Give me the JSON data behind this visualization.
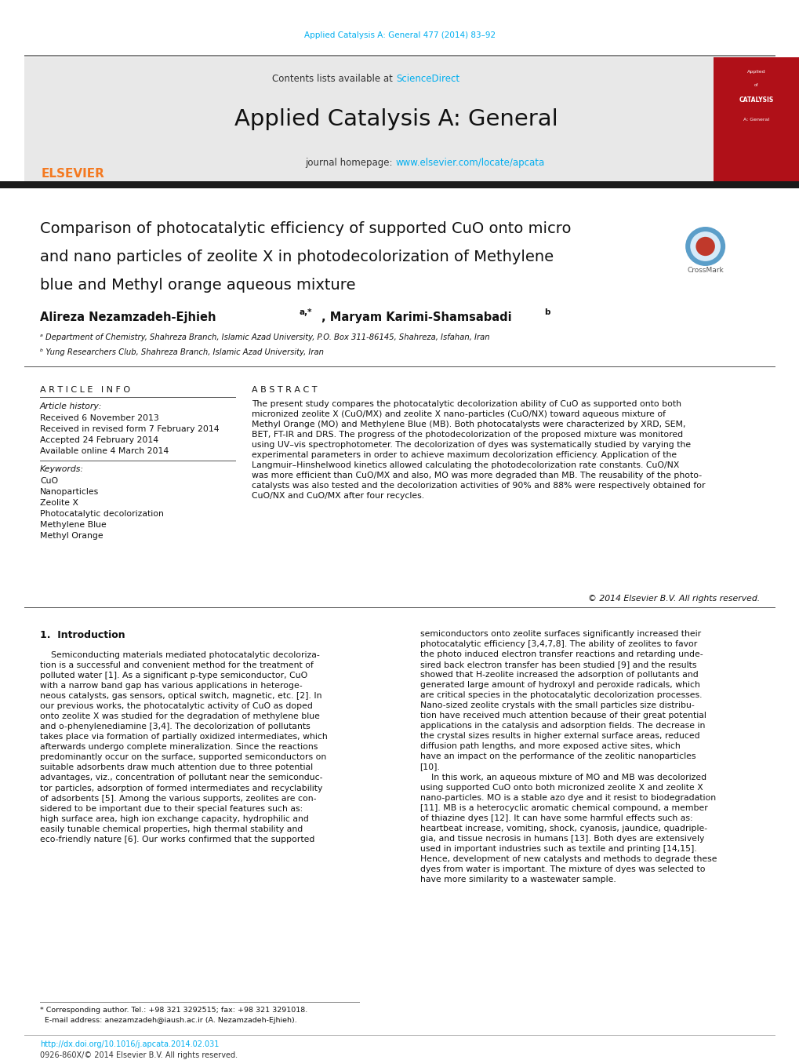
{
  "fig_width": 10.2,
  "fig_height": 13.51,
  "bg_color": "#ffffff",
  "journal_ref_text": "Applied Catalysis A: General 477 (2014) 83–92",
  "journal_ref_color": "#00aeef",
  "contents_text": "Contents lists available at ",
  "sciencedirect_text": "ScienceDirect",
  "sciencedirect_color": "#00aeef",
  "journal_name": "Applied Catalysis A: General",
  "journal_homepage_prefix": "journal homepage: ",
  "journal_homepage_url": "www.elsevier.com/locate/apcata",
  "journal_homepage_color": "#00aeef",
  "header_bg": "#e8e8e8",
  "elsevier_color": "#f47920",
  "article_info_header": "ARTICLE INFO",
  "abstract_header": "ABSTRACT",
  "article_history_header": "Article history:",
  "received1": "Received 6 November 2013",
  "received2": "Received in revised form 7 February 2014",
  "accepted": "Accepted 24 February 2014",
  "available": "Available online 4 March 2014",
  "keywords_header": "Keywords:",
  "keywords": [
    "CuO",
    "Nanoparticles",
    "Zeolite X",
    "Photocatalytic decolorization",
    "Methylene Blue",
    "Methyl Orange"
  ],
  "abstract_text": "The present study compares the photocatalytic decolorization ability of CuO as supported onto both\nmicronized zeolite X (CuO/MX) and zeolite X nano-particles (CuO/NX) toward aqueous mixture of\nMethyl Orange (MO) and Methylene Blue (MB). Both photocatalysts were characterized by XRD, SEM,\nBET, FT-IR and DRS. The progress of the photodecolorization of the proposed mixture was monitored\nusing UV–vis spectrophotometer. The decolorization of dyes was systematically studied by varying the\nexperimental parameters in order to achieve maximum decolorization efficiency. Application of the\nLangmuir–Hinshelwood kinetics allowed calculating the photodecolorization rate constants. CuO/NX\nwas more efficient than CuO/MX and also, MO was more degraded than MB. The reusability of the photo-\ncatalysts was also tested and the decolorization activities of 90% and 88% were respectively obtained for\nCuO/NX and CuO/MX after four recycles.",
  "copyright": "© 2014 Elsevier B.V. All rights reserved.",
  "intro_header": "1.  Introduction",
  "intro_text1": "    Semiconducting materials mediated photocatalytic decoloriza-\ntion is a successful and convenient method for the treatment of\npolluted water [1]. As a significant p-type semiconductor, CuO\nwith a narrow band gap has various applications in heteroge-\nneous catalysts, gas sensors, optical switch, magnetic, etc. [2]. In\nour previous works, the photocatalytic activity of CuO as doped\nonto zeolite X was studied for the degradation of methylene blue\nand o-phenylenediamine [3,4]. The decolorization of pollutants\ntakes place via formation of partially oxidized intermediates, which\nafterwards undergo complete mineralization. Since the reactions\npredominantly occur on the surface, supported semiconductors on\nsuitable adsorbents draw much attention due to three potential\nadvantages, viz., concentration of pollutant near the semiconduc-\ntor particles, adsorption of formed intermediates and recyclability\nof adsorbents [5]. Among the various supports, zeolites are con-\nsidered to be important due to their special features such as:\nhigh surface area, high ion exchange capacity, hydrophilic and\neasily tunable chemical properties, high thermal stability and\neco-friendly nature [6]. Our works confirmed that the supported",
  "intro_text2": "semiconductors onto zeolite surfaces significantly increased their\nphotocatalytic efficiency [3,4,7,8]. The ability of zeolites to favor\nthe photo induced electron transfer reactions and retarding unde-\nsired back electron transfer has been studied [9] and the results\nshowed that H-zeolite increased the adsorption of pollutants and\ngenerated large amount of hydroxyl and peroxide radicals, which\nare critical species in the photocatalytic decolorization processes.\nNano-sized zeolite crystals with the small particles size distribu-\ntion have received much attention because of their great potential\napplications in the catalysis and adsorption fields. The decrease in\nthe crystal sizes results in higher external surface areas, reduced\ndiffusion path lengths, and more exposed active sites, which\nhave an impact on the performance of the zeolitic nanoparticles\n[10].\n    In this work, an aqueous mixture of MO and MB was decolorized\nusing supported CuO onto both micronized zeolite X and zeolite X\nnano-particles. MO is a stable azo dye and it resist to biodegradation\n[11]. MB is a heterocyclic aromatic chemical compound, a member\nof thiazine dyes [12]. It can have some harmful effects such as:\nheartbeat increase, vomiting, shock, cyanosis, jaundice, quadriple-\ngia, and tissue necrosis in humans [13]. Both dyes are extensively\nused in important industries such as textile and printing [14,15].\nHence, development of new catalysts and methods to degrade these\ndyes from water is important. The mixture of dyes was selected to\nhave more similarity to a wastewater sample.",
  "affil_a": "ᵃ Department of Chemistry, Shahreza Branch, Islamic Azad University, P.O. Box 311-86145, Shahreza, Isfahan, Iran",
  "affil_b": "ᵇ Yung Researchers Club, Shahreza Branch, Islamic Azad University, Iran",
  "footnote_line1": "* Corresponding author. Tel.: +98 321 3292515; fax: +98 321 3291018.",
  "footnote_line2": "  E-mail address: anezamzadeh@iaush.ac.ir (A. Nezamzadeh-Ejhieh).",
  "doi_text": "http://dx.doi.org/10.1016/j.apcata.2014.02.031",
  "issn_text": "0926-860X/© 2014 Elsevier B.V. All rights reserved."
}
